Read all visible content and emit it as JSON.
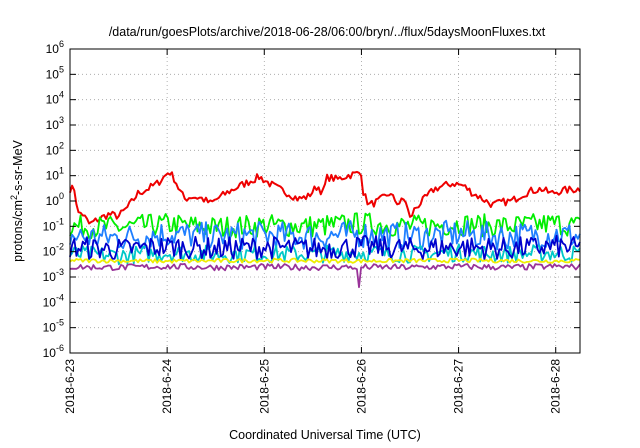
{
  "chart_data": {
    "type": "line",
    "title": "/data/run/goesPlots/archive/2018-06-28/06:00/bryn/../flux/5daysMoonFluxes.txt",
    "xlabel": "Coordinated Universal Time (UTC)",
    "ylabel_prefix": "protons/cm",
    "ylabel_sup": "2",
    "ylabel_suffix": "-s-sr-MeV",
    "y_scale": "log",
    "ylim": [
      1e-06,
      1000000.0
    ],
    "y_tick_exponents": [
      "-6",
      "-5",
      "-4",
      "-3",
      "-2",
      "-1",
      "0",
      "1",
      "2",
      "3",
      "4",
      "5",
      "6"
    ],
    "y_tick_base": "10",
    "x_ticks": [
      {
        "label": "2018-6-23",
        "day": 0
      },
      {
        "label": "2018-6-24",
        "day": 1
      },
      {
        "label": "2018-6-25",
        "day": 2
      },
      {
        "label": "2018-6-26",
        "day": 3
      },
      {
        "label": "2018-6-27",
        "day": 4
      },
      {
        "label": "2018-6-28",
        "day": 5
      }
    ],
    "xlim_days": [
      0,
      5.25
    ],
    "grid": true,
    "series": [
      {
        "color": "#ee0000",
        "points": [
          [
            0.0,
            3
          ],
          [
            0.05,
            3
          ],
          [
            0.08,
            0.3
          ],
          [
            0.12,
            0.35
          ],
          [
            0.2,
            0.12
          ],
          [
            0.3,
            0.2
          ],
          [
            0.4,
            0.3
          ],
          [
            0.5,
            0.25
          ],
          [
            0.6,
            0.6
          ],
          [
            0.7,
            2
          ],
          [
            0.8,
            3
          ],
          [
            0.9,
            5
          ],
          [
            0.98,
            10
          ],
          [
            1.02,
            15
          ],
          [
            1.08,
            7
          ],
          [
            1.12,
            3
          ],
          [
            1.18,
            1.2
          ],
          [
            1.25,
            1.5
          ],
          [
            1.35,
            1.3
          ],
          [
            1.45,
            0.8
          ],
          [
            1.55,
            1.5
          ],
          [
            1.65,
            2.5
          ],
          [
            1.75,
            4
          ],
          [
            1.85,
            6
          ],
          [
            1.95,
            9
          ],
          [
            2.05,
            5
          ],
          [
            2.15,
            3
          ],
          [
            2.25,
            2
          ],
          [
            2.35,
            1.2
          ],
          [
            2.45,
            1.5
          ],
          [
            2.55,
            4
          ],
          [
            2.6,
            2
          ],
          [
            2.65,
            9
          ],
          [
            2.75,
            7
          ],
          [
            2.85,
            10
          ],
          [
            2.95,
            12
          ],
          [
            3.0,
            14
          ],
          [
            3.02,
            2
          ],
          [
            3.08,
            0.7
          ],
          [
            3.18,
            1
          ],
          [
            3.28,
            2
          ],
          [
            3.38,
            0.8
          ],
          [
            3.45,
            1.2
          ],
          [
            3.5,
            0.2
          ],
          [
            3.55,
            0.5
          ],
          [
            3.65,
            1.2
          ],
          [
            3.75,
            3
          ],
          [
            3.85,
            4
          ],
          [
            3.95,
            5
          ],
          [
            4.05,
            4
          ],
          [
            4.15,
            2
          ],
          [
            4.25,
            1.2
          ],
          [
            4.35,
            0.7
          ],
          [
            4.45,
            0.9
          ],
          [
            4.55,
            1
          ],
          [
            4.65,
            1.8
          ],
          [
            4.75,
            2.5
          ],
          [
            4.85,
            3
          ],
          [
            4.95,
            2
          ],
          [
            5.05,
            2.5
          ],
          [
            5.15,
            2.8
          ],
          [
            5.25,
            3
          ]
        ],
        "jitter": 0.15
      },
      {
        "color": "#00ee00",
        "points": [
          [
            0.0,
            0.1
          ],
          [
            0.5,
            0.09
          ],
          [
            1.0,
            0.12
          ],
          [
            1.5,
            0.09
          ],
          [
            2.0,
            0.11
          ],
          [
            2.5,
            0.1
          ],
          [
            3.0,
            0.13
          ],
          [
            3.5,
            0.1
          ],
          [
            4.0,
            0.12
          ],
          [
            4.5,
            0.1
          ],
          [
            5.0,
            0.13
          ],
          [
            5.25,
            0.1
          ]
        ],
        "jitter": 0.45
      },
      {
        "color": "#1f7fff",
        "points": [
          [
            0.0,
            0.04
          ],
          [
            0.5,
            0.035
          ],
          [
            1.0,
            0.05
          ],
          [
            1.5,
            0.04
          ],
          [
            2.0,
            0.045
          ],
          [
            2.5,
            0.04
          ],
          [
            3.0,
            0.05
          ],
          [
            3.5,
            0.04
          ],
          [
            4.0,
            0.05
          ],
          [
            4.5,
            0.04
          ],
          [
            5.0,
            0.05
          ],
          [
            5.25,
            0.04
          ]
        ],
        "jitter": 0.55
      },
      {
        "color": "#00c8c8",
        "points": [
          [
            0.0,
            0.008
          ],
          [
            0.5,
            0.007
          ],
          [
            1.0,
            0.009
          ],
          [
            1.5,
            0.008
          ],
          [
            2.0,
            0.008
          ],
          [
            2.5,
            0.008
          ],
          [
            3.0,
            0.009
          ],
          [
            3.5,
            0.008
          ],
          [
            4.0,
            0.009
          ],
          [
            4.5,
            0.008
          ],
          [
            5.0,
            0.009
          ],
          [
            5.25,
            0.008
          ]
        ],
        "jitter": 0.35
      },
      {
        "color": "#0000cc",
        "points": [
          [
            0.0,
            0.015
          ],
          [
            0.5,
            0.012
          ],
          [
            1.0,
            0.016
          ],
          [
            1.5,
            0.013
          ],
          [
            2.0,
            0.015
          ],
          [
            2.5,
            0.013
          ],
          [
            3.0,
            0.016
          ],
          [
            3.5,
            0.013
          ],
          [
            4.0,
            0.015
          ],
          [
            4.5,
            0.013
          ],
          [
            5.0,
            0.016
          ],
          [
            5.25,
            0.013
          ]
        ],
        "jitter": 0.45
      },
      {
        "color": "#eeee00",
        "points": [
          [
            0.0,
            0.0045
          ],
          [
            1.0,
            0.0042
          ],
          [
            2.0,
            0.0045
          ],
          [
            3.0,
            0.0043
          ],
          [
            4.0,
            0.0045
          ],
          [
            5.0,
            0.0043
          ],
          [
            5.25,
            0.0044
          ]
        ],
        "jitter": 0.08
      },
      {
        "color": "#993399",
        "points": [
          [
            0.0,
            0.0025
          ],
          [
            0.5,
            0.0024
          ],
          [
            1.0,
            0.0026
          ],
          [
            1.5,
            0.0024
          ],
          [
            2.0,
            0.0025
          ],
          [
            2.5,
            0.0024
          ],
          [
            2.95,
            0.0025
          ],
          [
            2.97,
            0.0002
          ],
          [
            2.99,
            0.0025
          ],
          [
            3.5,
            0.0024
          ],
          [
            4.0,
            0.0026
          ],
          [
            4.5,
            0.0024
          ],
          [
            5.0,
            0.0026
          ],
          [
            5.25,
            0.0025
          ]
        ],
        "jitter": 0.12
      }
    ]
  }
}
